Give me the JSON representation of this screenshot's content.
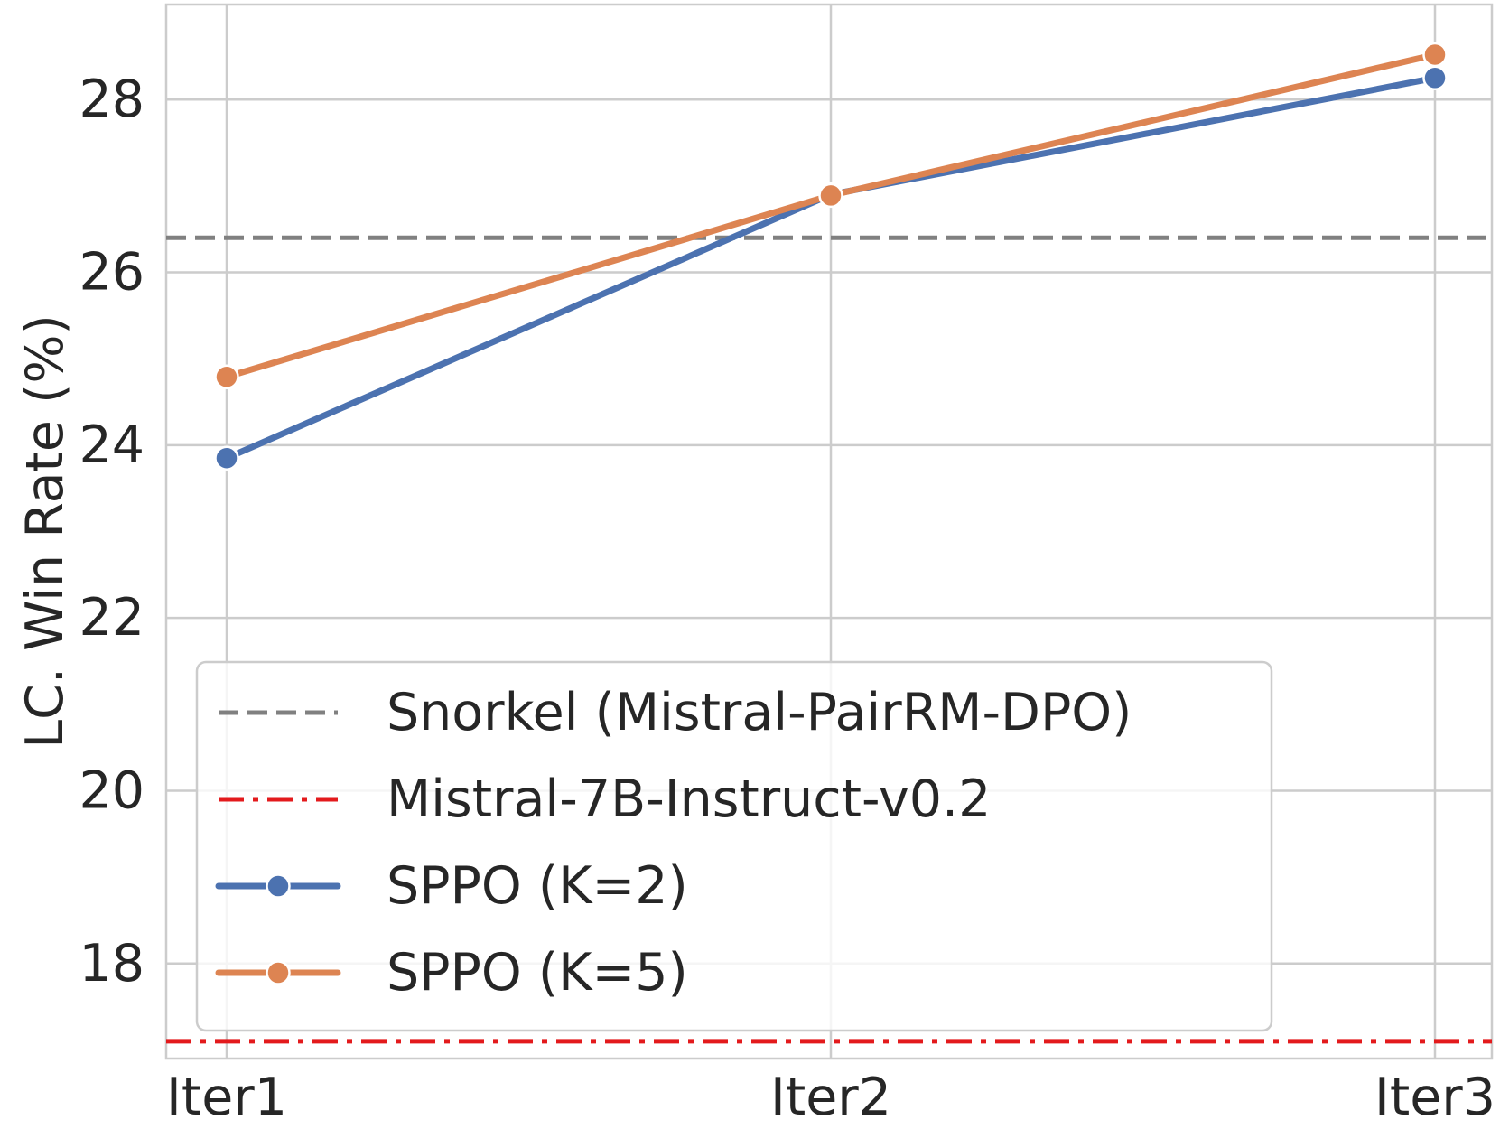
{
  "chart_data": {
    "type": "line",
    "title": "",
    "xlabel": "",
    "ylabel": "LC. Win Rate (%)",
    "categories": [
      "Iter1",
      "Iter2",
      "Iter3"
    ],
    "ylim": [
      16.9,
      29.1
    ],
    "yticks": [
      18,
      20,
      22,
      24,
      26,
      28
    ],
    "ytick_labels": [
      "18",
      "20",
      "22",
      "24",
      "26",
      "28"
    ],
    "grid": true,
    "legend_position": "lower-left",
    "reference_lines": [
      {
        "name": "Snorkel (Mistral-PairRM-DPO)",
        "value": 26.4,
        "color": "#808080",
        "style": "dashed"
      },
      {
        "name": "Mistral-7B-Instruct-v0.2",
        "value": 17.1,
        "color": "#e31a1c",
        "style": "dashdot"
      }
    ],
    "series": [
      {
        "name": "SPPO (K=2)",
        "values": [
          23.85,
          26.9,
          28.25
        ],
        "color": "#4c72b0"
      },
      {
        "name": "SPPO (K=5)",
        "values": [
          24.79,
          26.89,
          28.52
        ],
        "color": "#dd8452"
      }
    ]
  }
}
